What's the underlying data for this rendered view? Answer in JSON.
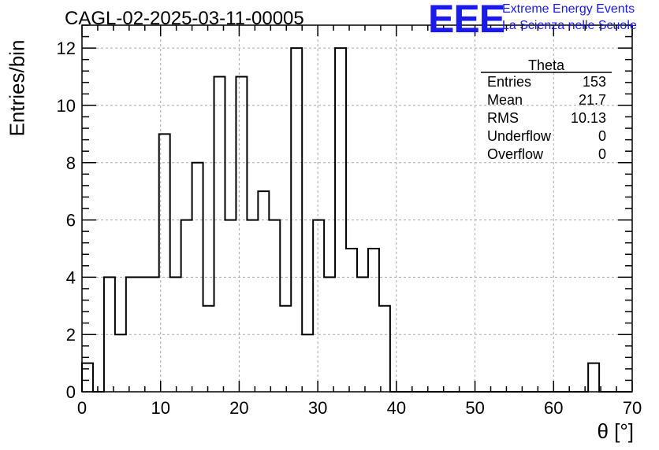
{
  "title": "CAGL-02-2025-03-11-00005",
  "logo": {
    "mark": "EEE",
    "line1": "Extreme Energy Events",
    "line2": "La Scienza nelle Scuole",
    "color": "#1a1aee"
  },
  "chart_data": {
    "type": "bar",
    "histogram": true,
    "xlabel": "θ [°]",
    "ylabel": "Entries/bin",
    "xlim": [
      0,
      70
    ],
    "ylim": [
      0,
      12.8
    ],
    "grid": true,
    "bin_width": 1.4,
    "x_ticks": [
      0,
      10,
      20,
      30,
      40,
      50,
      60,
      70
    ],
    "y_ticks": [
      0,
      2,
      4,
      6,
      8,
      10,
      12
    ],
    "counts": [
      1,
      0,
      4,
      2,
      4,
      4,
      4,
      9,
      4,
      6,
      8,
      3,
      11,
      6,
      11,
      6,
      7,
      6,
      3,
      12,
      2,
      6,
      4,
      12,
      5,
      4,
      5,
      3,
      0,
      0,
      0,
      0,
      0,
      0,
      0,
      0,
      0,
      0,
      0,
      0,
      0,
      0,
      0,
      0,
      0,
      0,
      1,
      0,
      0,
      0
    ],
    "stats_box": {
      "title": "Theta",
      "rows": [
        {
          "label": "Entries",
          "value": "153"
        },
        {
          "label": "Mean",
          "value": "21.7"
        },
        {
          "label": "RMS",
          "value": "10.13"
        },
        {
          "label": "Underflow",
          "value": "0"
        },
        {
          "label": "Overflow",
          "value": "0"
        }
      ]
    }
  }
}
